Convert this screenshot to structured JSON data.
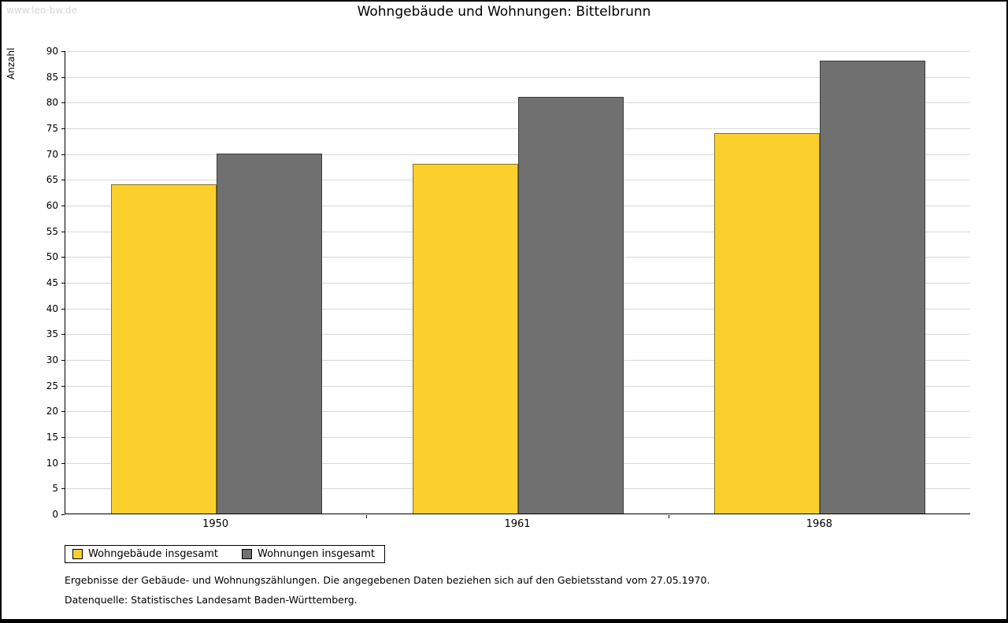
{
  "watermark": "www.leo-bw.de",
  "chart_data": {
    "type": "bar",
    "title": "Wohngebäude und Wohnungen: Bittelbrunn",
    "xlabel": "",
    "ylabel": "Anzahl",
    "categories": [
      "1950",
      "1961",
      "1968"
    ],
    "series": [
      {
        "name": "Wohngebäude insgesamt",
        "color": "#fcd02c",
        "values": [
          64,
          68,
          74
        ]
      },
      {
        "name": "Wohnungen insgesamt",
        "color": "#707070",
        "values": [
          70,
          81,
          88
        ]
      }
    ],
    "ylim": [
      0,
      90
    ],
    "ytick_step": 5,
    "grid": true,
    "legend_position": "bottom-left"
  },
  "footnotes": [
    "Ergebnisse der Gebäude- und Wohnungszählungen. Die angegebenen Daten beziehen sich auf den Gebietsstand vom 27.05.1970.",
    "Datenquelle: Statistisches Landesamt Baden-Württemberg."
  ]
}
